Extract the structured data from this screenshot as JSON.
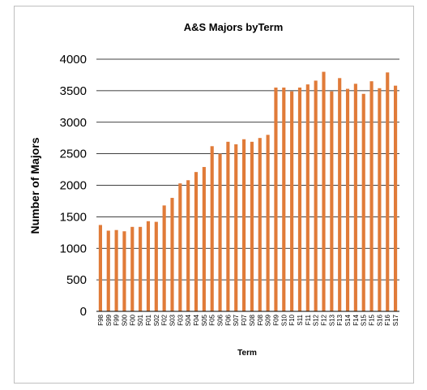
{
  "chart_data": {
    "type": "bar",
    "title": "A&S Majors byTerm",
    "xlabel": "Term",
    "ylabel": "Number of Majors",
    "ylim": [
      0,
      4000
    ],
    "yticks": [
      0,
      500,
      1000,
      1500,
      2000,
      2500,
      3000,
      3500,
      4000
    ],
    "grid": true,
    "bar_color": "#E07B39",
    "categories": [
      "F98",
      "S99",
      "F99",
      "S00",
      "F00",
      "S01",
      "F01",
      "S02",
      "F02",
      "S03",
      "F03",
      "S04",
      "F04",
      "S05",
      "F05",
      "S06",
      "F06",
      "S07",
      "F07",
      "S08",
      "F08",
      "S09",
      "F09",
      "S10",
      "F10",
      "S11",
      "F11",
      "S12",
      "F12",
      "S13",
      "F13",
      "S14",
      "F14",
      "S15",
      "F15",
      "S16",
      "F16",
      "S17"
    ],
    "values": [
      1370,
      1280,
      1290,
      1270,
      1340,
      1340,
      1430,
      1420,
      1680,
      1800,
      2030,
      2080,
      2210,
      2290,
      2620,
      2500,
      2690,
      2650,
      2730,
      2690,
      2750,
      2800,
      3550,
      3550,
      3490,
      3550,
      3600,
      3660,
      3800,
      3490,
      3700,
      3530,
      3610,
      3450,
      3650,
      3540,
      3790,
      3580
    ]
  }
}
